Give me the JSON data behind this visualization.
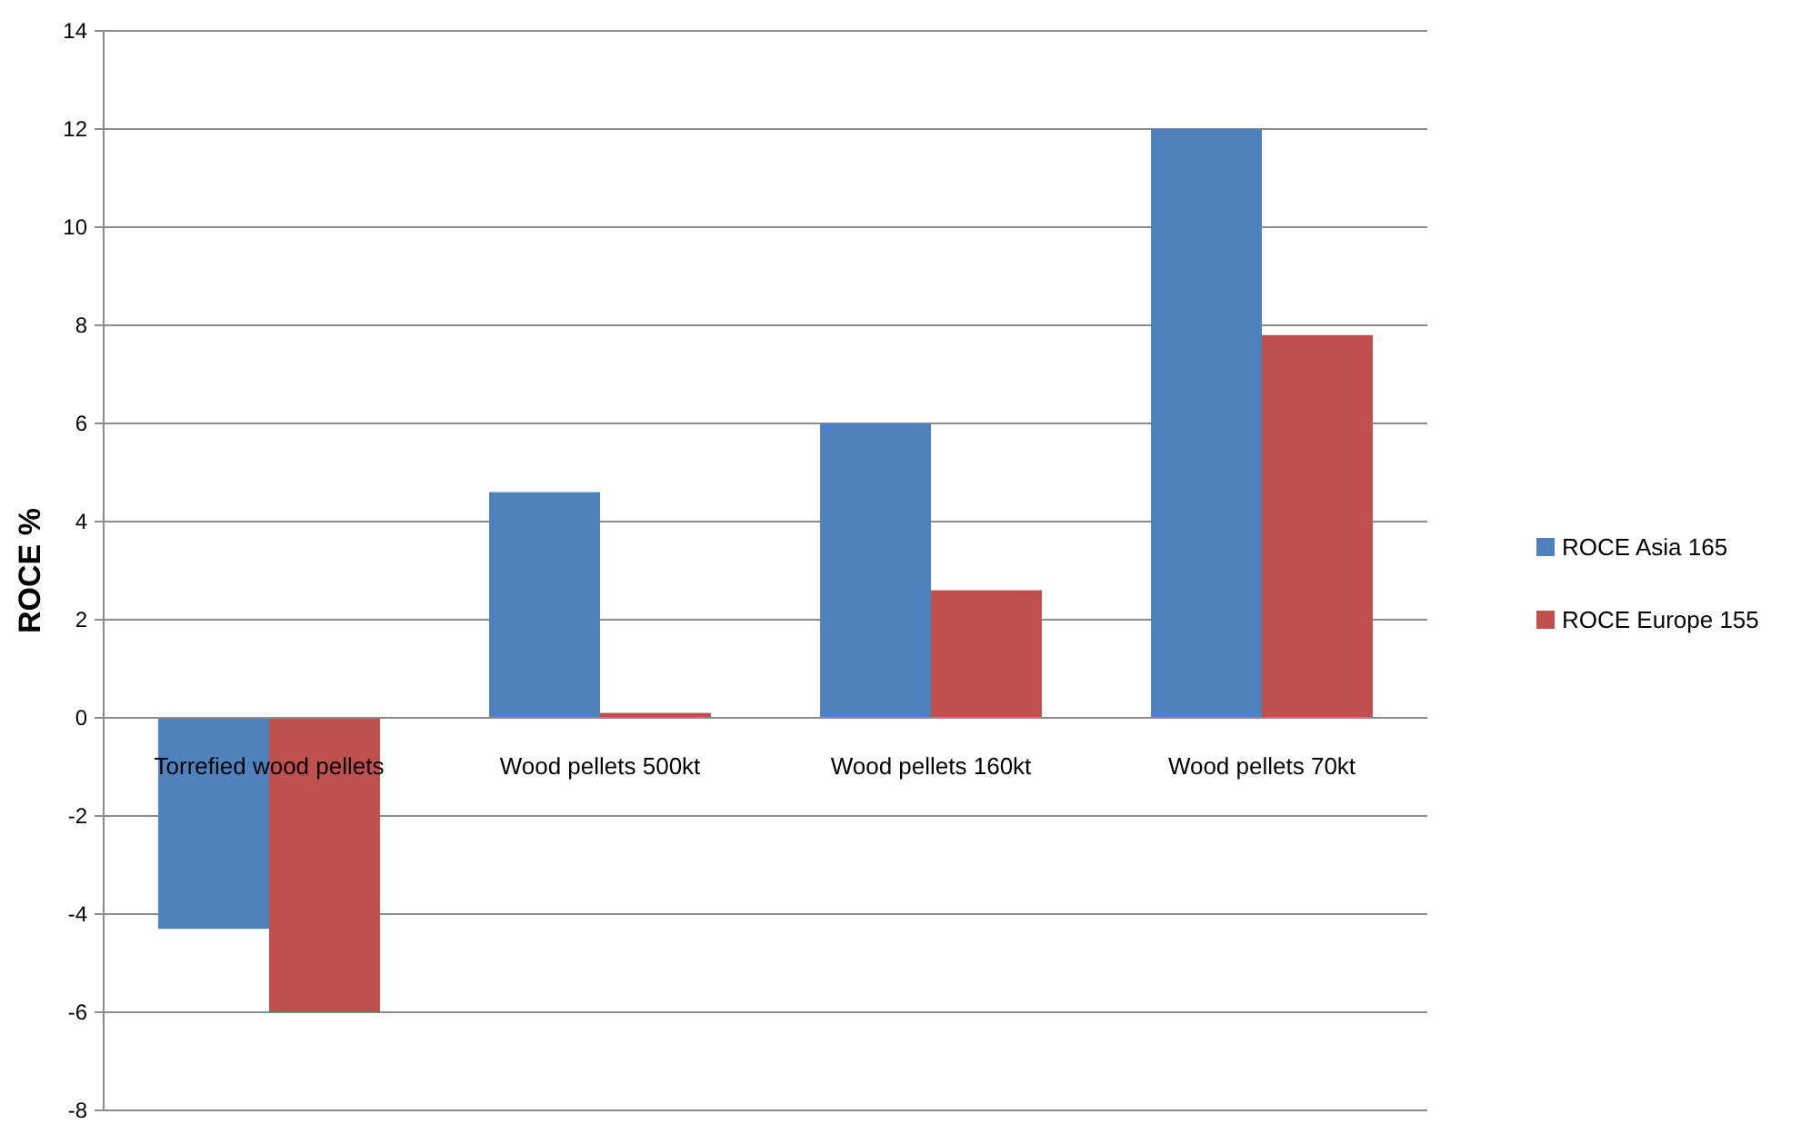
{
  "chart_data": {
    "type": "bar",
    "ylabel": "ROCE %",
    "categories": [
      "Torrefied wood pellets",
      "Wood pellets 500kt",
      "Wood pellets 160kt",
      "Wood pellets 70kt"
    ],
    "series": [
      {
        "name": "ROCE Asia 165",
        "color": "#4f81bd",
        "values": [
          -4.3,
          4.6,
          6.0,
          12.0
        ]
      },
      {
        "name": "ROCE Europe 155",
        "color": "#c0504d",
        "values": [
          -6.0,
          0.1,
          2.6,
          7.8
        ]
      }
    ],
    "ylim": [
      -8,
      14
    ],
    "yticks": [
      -8,
      -6,
      -4,
      -2,
      0,
      2,
      4,
      6,
      8,
      10,
      12,
      14
    ],
    "grid": "y",
    "legend": "right"
  }
}
